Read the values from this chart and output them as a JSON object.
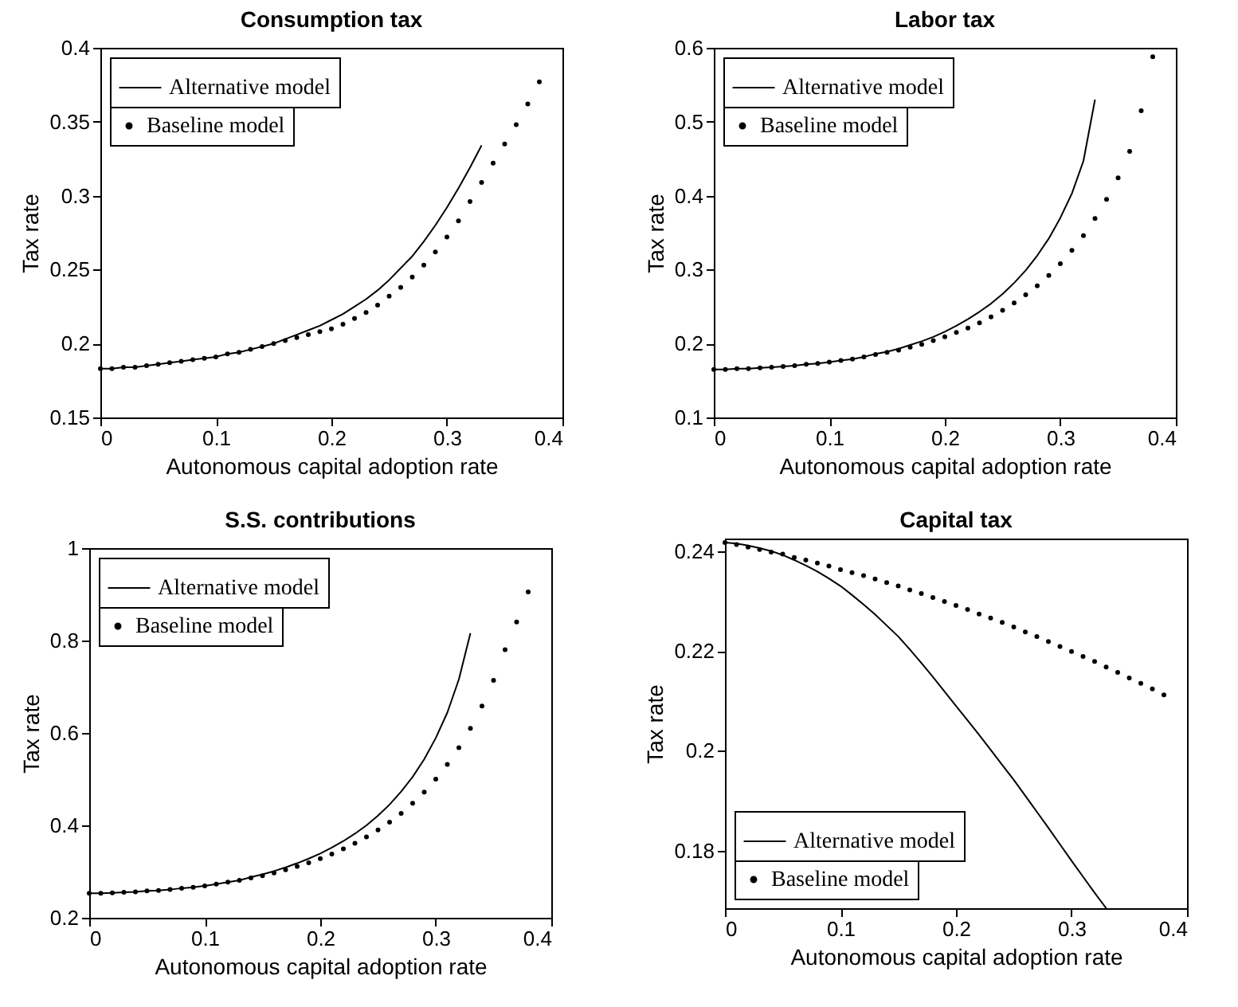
{
  "chart_data": [
    {
      "type": "line",
      "title": "Consumption tax",
      "xlabel": "Autonomous capital adoption rate",
      "ylabel": "Tax rate",
      "xlim": [
        0,
        0.4
      ],
      "xticks": [
        0,
        0.1,
        0.2,
        0.3,
        0.4
      ],
      "ylim": [
        0.15,
        0.4
      ],
      "yticks": [
        0.15,
        0.2,
        0.25,
        0.3,
        0.35,
        0.4
      ],
      "legend": "top left",
      "series": [
        {
          "name": "Alternative model",
          "type": "line",
          "color": "#000000",
          "x": [
            0,
            0.01,
            0.02,
            0.03,
            0.04,
            0.05,
            0.06,
            0.07,
            0.08,
            0.09,
            0.1,
            0.11,
            0.12,
            0.13,
            0.14,
            0.15,
            0.16,
            0.17,
            0.18,
            0.19,
            0.2,
            0.21,
            0.22,
            0.23,
            0.24,
            0.25,
            0.26,
            0.27,
            0.28,
            0.29,
            0.3,
            0.31,
            0.32,
            0.33
          ],
          "values": [
            0.183,
            0.183,
            0.184,
            0.184,
            0.185,
            0.186,
            0.187,
            0.188,
            0.189,
            0.19,
            0.191,
            0.193,
            0.194,
            0.196,
            0.198,
            0.2,
            0.203,
            0.206,
            0.209,
            0.212,
            0.216,
            0.22,
            0.225,
            0.23,
            0.236,
            0.243,
            0.251,
            0.259,
            0.269,
            0.28,
            0.292,
            0.305,
            0.319,
            0.334
          ]
        },
        {
          "name": "Baseline model",
          "type": "scatter",
          "marker": "circle",
          "color": "#000000",
          "x": [
            0,
            0.01,
            0.02,
            0.03,
            0.04,
            0.05,
            0.06,
            0.07,
            0.08,
            0.09,
            0.1,
            0.11,
            0.12,
            0.13,
            0.14,
            0.15,
            0.16,
            0.17,
            0.18,
            0.19,
            0.2,
            0.21,
            0.22,
            0.23,
            0.24,
            0.25,
            0.26,
            0.27,
            0.28,
            0.29,
            0.3,
            0.31,
            0.32,
            0.33,
            0.34,
            0.35,
            0.36,
            0.37,
            0.38
          ],
          "values": [
            0.183,
            0.183,
            0.184,
            0.184,
            0.185,
            0.186,
            0.187,
            0.188,
            0.189,
            0.19,
            0.191,
            0.193,
            0.194,
            0.196,
            0.198,
            0.2,
            0.202,
            0.204,
            0.206,
            0.208,
            0.21,
            0.213,
            0.217,
            0.221,
            0.226,
            0.232,
            0.238,
            0.245,
            0.253,
            0.262,
            0.272,
            0.283,
            0.296,
            0.309,
            0.322,
            0.335,
            0.348,
            0.362,
            0.377
          ]
        }
      ]
    },
    {
      "type": "line",
      "title": "Labor tax",
      "xlabel": "Autonomous capital adoption rate",
      "ylabel": "Tax rate",
      "xlim": [
        0,
        0.4
      ],
      "xticks": [
        0,
        0.1,
        0.2,
        0.3,
        0.4
      ],
      "ylim": [
        0.1,
        0.6
      ],
      "yticks": [
        0.1,
        0.2,
        0.3,
        0.4,
        0.5,
        0.6
      ],
      "legend": "top left",
      "series": [
        {
          "name": "Alternative model",
          "type": "line",
          "color": "#000000",
          "x": [
            0,
            0.01,
            0.02,
            0.03,
            0.04,
            0.05,
            0.06,
            0.07,
            0.08,
            0.09,
            0.1,
            0.11,
            0.12,
            0.13,
            0.14,
            0.15,
            0.16,
            0.17,
            0.18,
            0.19,
            0.2,
            0.21,
            0.22,
            0.23,
            0.24,
            0.25,
            0.26,
            0.27,
            0.28,
            0.29,
            0.3,
            0.31,
            0.32,
            0.33
          ],
          "values": [
            0.165,
            0.165,
            0.166,
            0.166,
            0.167,
            0.168,
            0.169,
            0.17,
            0.172,
            0.173,
            0.175,
            0.177,
            0.179,
            0.182,
            0.186,
            0.189,
            0.193,
            0.198,
            0.203,
            0.209,
            0.216,
            0.224,
            0.233,
            0.243,
            0.254,
            0.267,
            0.282,
            0.299,
            0.319,
            0.342,
            0.37,
            0.403,
            0.447,
            0.53
          ]
        },
        {
          "name": "Baseline model",
          "type": "scatter",
          "marker": "circle",
          "color": "#000000",
          "x": [
            0,
            0.01,
            0.02,
            0.03,
            0.04,
            0.05,
            0.06,
            0.07,
            0.08,
            0.09,
            0.1,
            0.11,
            0.12,
            0.13,
            0.14,
            0.15,
            0.16,
            0.17,
            0.18,
            0.19,
            0.2,
            0.21,
            0.22,
            0.23,
            0.24,
            0.25,
            0.26,
            0.27,
            0.28,
            0.29,
            0.3,
            0.31,
            0.32,
            0.33,
            0.34,
            0.35,
            0.36,
            0.37,
            0.38
          ],
          "values": [
            0.165,
            0.165,
            0.166,
            0.166,
            0.167,
            0.168,
            0.169,
            0.17,
            0.172,
            0.173,
            0.175,
            0.177,
            0.179,
            0.182,
            0.185,
            0.188,
            0.191,
            0.195,
            0.199,
            0.204,
            0.209,
            0.215,
            0.221,
            0.228,
            0.236,
            0.245,
            0.255,
            0.266,
            0.278,
            0.292,
            0.308,
            0.326,
            0.346,
            0.369,
            0.395,
            0.424,
            0.46,
            0.515,
            0.588
          ]
        }
      ]
    },
    {
      "type": "line",
      "title": "S.S. contributions",
      "xlabel": "Autonomous capital adoption rate",
      "ylabel": "Tax rate",
      "xlim": [
        0,
        0.4
      ],
      "xticks": [
        0,
        0.1,
        0.2,
        0.3,
        0.4
      ],
      "ylim": [
        0.2,
        1
      ],
      "yticks": [
        0.2,
        0.4,
        0.6,
        0.8,
        1
      ],
      "legend": "top left",
      "series": [
        {
          "name": "Alternative model",
          "type": "line",
          "color": "#000000",
          "x": [
            0,
            0.01,
            0.02,
            0.03,
            0.04,
            0.05,
            0.06,
            0.07,
            0.08,
            0.09,
            0.1,
            0.11,
            0.12,
            0.13,
            0.14,
            0.15,
            0.16,
            0.17,
            0.18,
            0.19,
            0.2,
            0.21,
            0.22,
            0.23,
            0.24,
            0.25,
            0.26,
            0.27,
            0.28,
            0.29,
            0.3,
            0.31,
            0.32,
            0.33
          ],
          "values": [
            0.253,
            0.253,
            0.254,
            0.255,
            0.256,
            0.258,
            0.259,
            0.261,
            0.264,
            0.266,
            0.269,
            0.273,
            0.277,
            0.281,
            0.288,
            0.294,
            0.301,
            0.309,
            0.318,
            0.328,
            0.339,
            0.352,
            0.366,
            0.382,
            0.4,
            0.421,
            0.445,
            0.473,
            0.505,
            0.543,
            0.589,
            0.644,
            0.716,
            0.816
          ]
        },
        {
          "name": "Baseline model",
          "type": "scatter",
          "marker": "circle",
          "color": "#000000",
          "x": [
            0,
            0.01,
            0.02,
            0.03,
            0.04,
            0.05,
            0.06,
            0.07,
            0.08,
            0.09,
            0.1,
            0.11,
            0.12,
            0.13,
            0.14,
            0.15,
            0.16,
            0.17,
            0.18,
            0.19,
            0.2,
            0.21,
            0.22,
            0.23,
            0.24,
            0.25,
            0.26,
            0.27,
            0.28,
            0.29,
            0.3,
            0.31,
            0.32,
            0.33,
            0.34,
            0.35,
            0.36,
            0.37,
            0.38
          ],
          "values": [
            0.253,
            0.253,
            0.254,
            0.255,
            0.256,
            0.258,
            0.259,
            0.261,
            0.264,
            0.266,
            0.269,
            0.273,
            0.277,
            0.281,
            0.286,
            0.291,
            0.297,
            0.304,
            0.311,
            0.319,
            0.328,
            0.338,
            0.349,
            0.361,
            0.375,
            0.39,
            0.407,
            0.426,
            0.448,
            0.472,
            0.5,
            0.532,
            0.568,
            0.61,
            0.658,
            0.714,
            0.78,
            0.84,
            0.905
          ]
        }
      ]
    },
    {
      "type": "line",
      "title": "Capital tax",
      "xlabel": "Autonomous capital adoption rate",
      "ylabel": "Tax rate",
      "xlim": [
        0,
        0.4
      ],
      "xticks": [
        0,
        0.1,
        0.2,
        0.3,
        0.4
      ],
      "ylim": [
        0.1685,
        0.2425
      ],
      "yticks": [
        0.18,
        0.2,
        0.22,
        0.24
      ],
      "legend": "bottom left",
      "series": [
        {
          "name": "Alternative model",
          "type": "line",
          "color": "#000000",
          "x": [
            0,
            0.01,
            0.02,
            0.03,
            0.04,
            0.05,
            0.06,
            0.07,
            0.08,
            0.09,
            0.1,
            0.11,
            0.12,
            0.13,
            0.14,
            0.15,
            0.16,
            0.17,
            0.18,
            0.19,
            0.2,
            0.21,
            0.22,
            0.23,
            0.24,
            0.25,
            0.26,
            0.27,
            0.28,
            0.29,
            0.3,
            0.31,
            0.32,
            0.33
          ],
          "values": [
            0.2417,
            0.2415,
            0.2411,
            0.2406,
            0.24,
            0.2392,
            0.2382,
            0.2371,
            0.2359,
            0.2345,
            0.233,
            0.2312,
            0.2293,
            0.2273,
            0.2251,
            0.2229,
            0.2203,
            0.2176,
            0.2148,
            0.2119,
            0.209,
            0.2061,
            0.2032,
            0.2002,
            0.1972,
            0.1942,
            0.191,
            0.1878,
            0.1846,
            0.1813,
            0.178,
            0.1748,
            0.1716,
            0.1685
          ]
        },
        {
          "name": "Baseline model",
          "type": "scatter",
          "marker": "circle",
          "color": "#000000",
          "x": [
            0,
            0.01,
            0.02,
            0.03,
            0.04,
            0.05,
            0.06,
            0.07,
            0.08,
            0.09,
            0.1,
            0.11,
            0.12,
            0.13,
            0.14,
            0.15,
            0.16,
            0.17,
            0.18,
            0.19,
            0.2,
            0.21,
            0.22,
            0.23,
            0.24,
            0.25,
            0.26,
            0.27,
            0.28,
            0.29,
            0.3,
            0.31,
            0.32,
            0.33,
            0.34,
            0.35,
            0.36,
            0.37,
            0.38
          ],
          "values": [
            0.2417,
            0.2413,
            0.2408,
            0.2403,
            0.2398,
            0.2394,
            0.2387,
            0.2382,
            0.2376,
            0.237,
            0.2363,
            0.2357,
            0.2351,
            0.2344,
            0.2337,
            0.233,
            0.2322,
            0.2315,
            0.2307,
            0.2299,
            0.2291,
            0.2283,
            0.2274,
            0.2266,
            0.2257,
            0.2248,
            0.2238,
            0.2229,
            0.2219,
            0.2209,
            0.2199,
            0.2189,
            0.2179,
            0.2168,
            0.2157,
            0.2146,
            0.2135,
            0.2124,
            0.2112
          ]
        }
      ]
    }
  ]
}
